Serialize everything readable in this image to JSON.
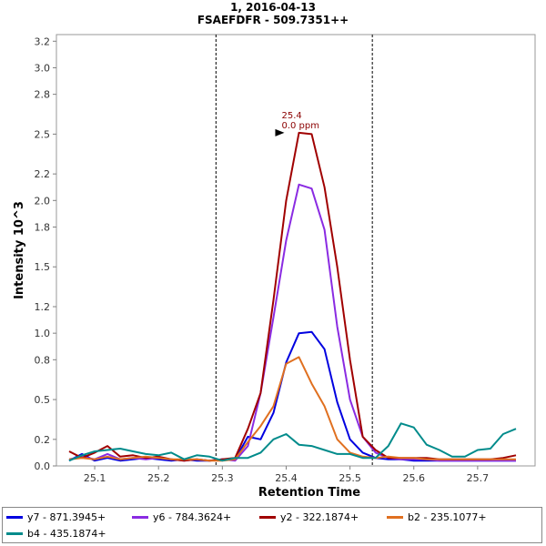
{
  "title": "1, 2016-04-13",
  "subtitle": "FSAEFDFR - 509.7351++",
  "chart_data": {
    "type": "line",
    "title": "1, 2016-04-13",
    "subtitle": "FSAEFDFR - 509.7351++",
    "xlabel": "Retention Time",
    "ylabel": "Intensity 10^3",
    "xlim": [
      25.04,
      25.79
    ],
    "ylim": [
      0.0,
      3.25
    ],
    "xticks": [
      "25.1",
      "25.2",
      "25.3",
      "25.4",
      "25.5",
      "25.6",
      "25.7"
    ],
    "yticks": [
      "0.0",
      "0.2",
      "0.5",
      "0.8",
      "1.0",
      "1.2",
      "1.5",
      "1.8",
      "2.0",
      "2.2",
      "2.5",
      "2.8",
      "3.0",
      "3.2"
    ],
    "grid": false,
    "integration_boundaries": [
      25.29,
      25.535
    ],
    "annotation": {
      "x": 25.4,
      "y": 2.51,
      "lines": [
        "25.4",
        "0.0 ppm"
      ]
    },
    "legend_position": "bottom",
    "series": [
      {
        "name": "y7 - 871.3945+",
        "color": "#0000e0",
        "x": [
          25.06,
          25.08,
          25.1,
          25.12,
          25.14,
          25.16,
          25.18,
          25.2,
          25.22,
          25.24,
          25.26,
          25.28,
          25.3,
          25.32,
          25.34,
          25.36,
          25.38,
          25.4,
          25.42,
          25.44,
          25.46,
          25.48,
          25.5,
          25.52,
          25.54,
          25.56,
          25.58,
          25.6,
          25.62,
          25.64,
          25.66,
          25.68,
          25.7,
          25.72,
          25.74,
          25.76
        ],
        "y": [
          0.04,
          0.09,
          0.04,
          0.06,
          0.04,
          0.05,
          0.06,
          0.05,
          0.04,
          0.05,
          0.04,
          0.04,
          0.05,
          0.05,
          0.22,
          0.2,
          0.4,
          0.78,
          1.0,
          1.01,
          0.88,
          0.48,
          0.2,
          0.1,
          0.06,
          0.05,
          0.05,
          0.04,
          0.04,
          0.04,
          0.04,
          0.04,
          0.04,
          0.04,
          0.04,
          0.04
        ]
      },
      {
        "name": "y6 - 784.3624+",
        "color": "#8a2be2",
        "x": [
          25.06,
          25.08,
          25.1,
          25.12,
          25.14,
          25.16,
          25.18,
          25.2,
          25.22,
          25.24,
          25.26,
          25.28,
          25.3,
          25.32,
          25.34,
          25.36,
          25.38,
          25.4,
          25.42,
          25.44,
          25.46,
          25.48,
          25.5,
          25.52,
          25.54,
          25.56,
          25.58,
          25.6,
          25.62,
          25.64,
          25.66,
          25.68,
          25.7,
          25.72,
          25.74,
          25.76
        ],
        "y": [
          0.05,
          0.07,
          0.05,
          0.09,
          0.05,
          0.06,
          0.05,
          0.06,
          0.05,
          0.04,
          0.05,
          0.04,
          0.05,
          0.04,
          0.15,
          0.55,
          1.12,
          1.7,
          2.12,
          2.09,
          1.78,
          1.05,
          0.5,
          0.22,
          0.1,
          0.06,
          0.05,
          0.05,
          0.05,
          0.04,
          0.04,
          0.04,
          0.04,
          0.04,
          0.04,
          0.04
        ]
      },
      {
        "name": "y2 - 322.1874+",
        "color": "#a00000",
        "x": [
          25.06,
          25.08,
          25.1,
          25.12,
          25.14,
          25.16,
          25.18,
          25.2,
          25.22,
          25.24,
          25.26,
          25.28,
          25.3,
          25.32,
          25.34,
          25.36,
          25.38,
          25.4,
          25.42,
          25.44,
          25.46,
          25.48,
          25.5,
          25.52,
          25.54,
          25.56,
          25.58,
          25.6,
          25.62,
          25.64,
          25.66,
          25.68,
          25.7,
          25.72,
          25.74,
          25.76
        ],
        "y": [
          0.11,
          0.06,
          0.1,
          0.15,
          0.07,
          0.08,
          0.06,
          0.07,
          0.05,
          0.04,
          0.05,
          0.04,
          0.05,
          0.06,
          0.28,
          0.55,
          1.25,
          2.0,
          2.51,
          2.5,
          2.1,
          1.5,
          0.8,
          0.22,
          0.12,
          0.06,
          0.06,
          0.06,
          0.06,
          0.05,
          0.05,
          0.05,
          0.05,
          0.05,
          0.06,
          0.08
        ]
      },
      {
        "name": "b2 - 235.1077+",
        "color": "#e07020",
        "x": [
          25.06,
          25.08,
          25.1,
          25.12,
          25.14,
          25.16,
          25.18,
          25.2,
          25.22,
          25.24,
          25.26,
          25.28,
          25.3,
          25.32,
          25.34,
          25.36,
          25.38,
          25.4,
          25.42,
          25.44,
          25.46,
          25.48,
          25.5,
          25.52,
          25.54,
          25.56,
          25.58,
          25.6,
          25.62,
          25.64,
          25.66,
          25.68,
          25.7,
          25.72,
          25.74,
          25.76
        ],
        "y": [
          0.05,
          0.06,
          0.05,
          0.07,
          0.05,
          0.06,
          0.07,
          0.06,
          0.05,
          0.05,
          0.05,
          0.04,
          0.04,
          0.05,
          0.18,
          0.3,
          0.45,
          0.77,
          0.82,
          0.62,
          0.45,
          0.2,
          0.1,
          0.07,
          0.06,
          0.07,
          0.06,
          0.06,
          0.05,
          0.05,
          0.05,
          0.05,
          0.05,
          0.05,
          0.05,
          0.05
        ]
      },
      {
        "name": "b4 - 435.1874+",
        "color": "#008b8b",
        "x": [
          25.06,
          25.08,
          25.1,
          25.12,
          25.14,
          25.16,
          25.18,
          25.2,
          25.22,
          25.24,
          25.26,
          25.28,
          25.3,
          25.32,
          25.34,
          25.36,
          25.38,
          25.4,
          25.42,
          25.44,
          25.46,
          25.48,
          25.5,
          25.52,
          25.54,
          25.56,
          25.58,
          25.6,
          25.62,
          25.64,
          25.66,
          25.68,
          25.7,
          25.72,
          25.74,
          25.76
        ],
        "y": [
          0.04,
          0.08,
          0.11,
          0.12,
          0.13,
          0.11,
          0.09,
          0.08,
          0.1,
          0.05,
          0.08,
          0.07,
          0.04,
          0.06,
          0.06,
          0.1,
          0.2,
          0.24,
          0.16,
          0.15,
          0.12,
          0.09,
          0.09,
          0.06,
          0.06,
          0.15,
          0.32,
          0.29,
          0.16,
          0.12,
          0.07,
          0.07,
          0.12,
          0.13,
          0.24,
          0.28
        ]
      }
    ]
  }
}
